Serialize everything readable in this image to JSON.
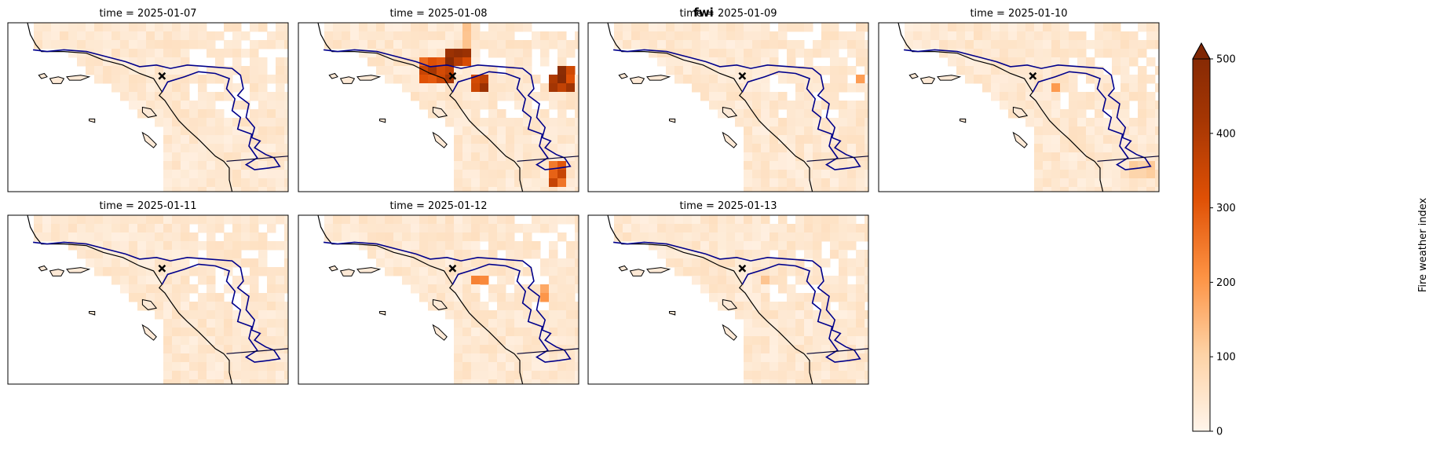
{
  "figure": {
    "suptitle": "fwi",
    "variable": "fwi",
    "colormap": "Oranges",
    "panels": [
      {
        "title": "time = 2025-01-07",
        "date": "2025-01-07"
      },
      {
        "title": "time = 2025-01-08",
        "date": "2025-01-08"
      },
      {
        "title": "time = 2025-01-09",
        "date": "2025-01-09"
      },
      {
        "title": "time = 2025-01-10",
        "date": "2025-01-10"
      },
      {
        "title": "time = 2025-01-11",
        "date": "2025-01-11"
      },
      {
        "title": "time = 2025-01-12",
        "date": "2025-01-12"
      },
      {
        "title": "time = 2025-01-13",
        "date": "2025-01-13"
      }
    ]
  },
  "colorbar": {
    "label": "Fire weather index",
    "ticks": [
      "0",
      "100",
      "200",
      "300",
      "400",
      "500"
    ],
    "min": 0,
    "max": 500,
    "extend": "max",
    "colors": [
      "#fff5eb",
      "#fdd2a5",
      "#fd9243",
      "#df5005",
      "#a63603",
      "#7f2704"
    ]
  },
  "map": {
    "coast_color": "#000000",
    "boundary_color": "#00008b",
    "marker": "x"
  }
}
